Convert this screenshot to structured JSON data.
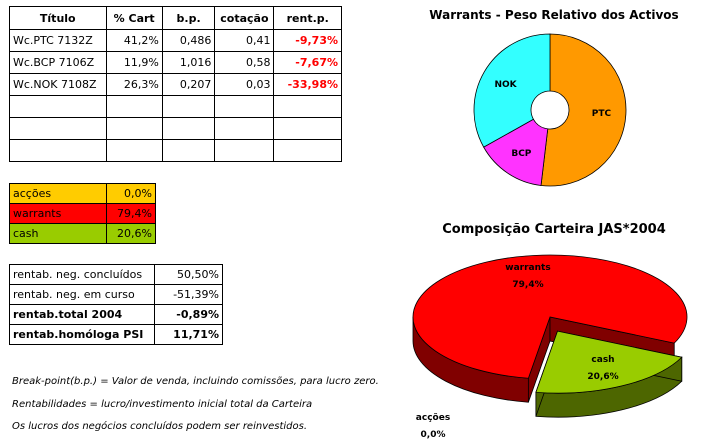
{
  "warrants_table": {
    "headers": [
      "Título",
      "% Cart",
      "b.p.",
      "cotação",
      "rent.p."
    ],
    "rows": [
      [
        "Wc.PTC 7132Z",
        "41,2%",
        "0,486",
        "0,41",
        "-9,73%"
      ],
      [
        "Wc.BCP 7106Z",
        "11,9%",
        "1,016",
        "0,58",
        "-7,67%"
      ],
      [
        "Wc.NOK 7108Z",
        "26,3%",
        "0,207",
        "0,03",
        "-33,98%"
      ],
      [
        "",
        "",
        "",
        "",
        ""
      ],
      [
        "",
        "",
        "",
        "",
        ""
      ],
      [
        "",
        "",
        "",
        "",
        ""
      ]
    ]
  },
  "allocation_table": {
    "rows": [
      {
        "label": "acções",
        "value": "0,0%",
        "color": "#ffcc00"
      },
      {
        "label": "warrants",
        "value": "79,4%",
        "color": "#ff0000"
      },
      {
        "label": "cash",
        "value": "20,6%",
        "color": "#99cc00"
      }
    ]
  },
  "returns_table": {
    "rows": [
      {
        "label": "rentab. neg. concluídos",
        "value": "50,50%"
      },
      {
        "label": "rentab. neg. em curso",
        "value": "-51,39%"
      },
      {
        "label": "rentab.total 2004",
        "value": "-0,89%"
      },
      {
        "label": "rentab.homóloga PSI",
        "value": "11,71%"
      }
    ]
  },
  "notes": [
    "Break-point(b.p.) = Valor de venda, incluindo comissões, para lucro zero.",
    "Rentabilidades = lucro/investimento inicial total da Carteira",
    "Os lucros dos negócios concluídos podem ser reinvestidos."
  ],
  "chart_data": [
    {
      "type": "pie",
      "title": "Warrants - Peso Relativo dos Activos",
      "categories": [
        "PTC",
        "BCP",
        "NOK"
      ],
      "values": [
        41.2,
        11.9,
        26.3
      ],
      "colors": [
        "#ff9900",
        "#ff33ff",
        "#33ffff"
      ]
    },
    {
      "type": "pie",
      "title": "Composição Carteira JAS*2004",
      "categories": [
        "acções",
        "warrants",
        "cash"
      ],
      "values": [
        0.0,
        79.4,
        20.6
      ],
      "value_labels": [
        "0,0%",
        "79,4%",
        "20,6%"
      ],
      "colors": [
        "#ffcc00",
        "#ff0000",
        "#99cc00"
      ],
      "side_colors": [
        "#806600",
        "#800000",
        "#4d6600"
      ]
    }
  ]
}
